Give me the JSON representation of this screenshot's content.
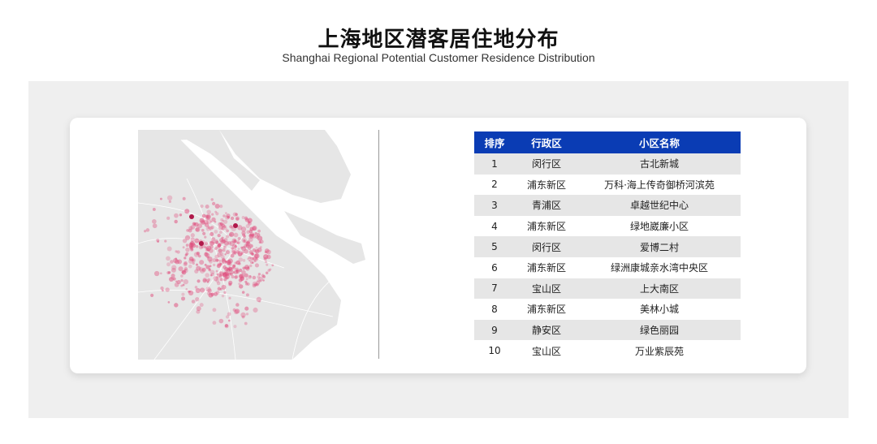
{
  "title": "上海地区潜客居住地分布",
  "subtitle": "Shanghai Regional Potential Customer Residence Distribution",
  "colors": {
    "header_bg": "#0a3cb4",
    "dot": "#e0507f",
    "land": "#e6e6e6"
  },
  "table": {
    "headers": [
      "排序",
      "行政区",
      "小区名称"
    ],
    "rows": [
      [
        "1",
        "闵行区",
        "古北新城"
      ],
      [
        "2",
        "浦东新区",
        "万科·海上传奇御桥河滨苑"
      ],
      [
        "3",
        "青浦区",
        "卓越世纪中心"
      ],
      [
        "4",
        "浦东新区",
        "绿地崴廉小区"
      ],
      [
        "5",
        "闵行区",
        "爱博二村"
      ],
      [
        "6",
        "浦东新区",
        "绿洲康城亲水湾中央区"
      ],
      [
        "7",
        "宝山区",
        "上大南区"
      ],
      [
        "8",
        "浦东新区",
        "美林小城"
      ],
      [
        "9",
        "静安区",
        "绿色丽园"
      ],
      [
        "10",
        "宝山区",
        "万业紫辰苑"
      ]
    ]
  }
}
